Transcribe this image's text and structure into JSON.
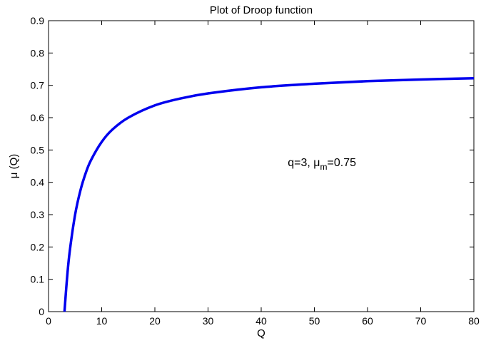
{
  "chart_data": {
    "type": "line",
    "title": "Plot of Droop function",
    "xlabel": "Q",
    "ylabel": "μ (Q)",
    "xlim": [
      0,
      80
    ],
    "ylim": [
      0,
      0.9
    ],
    "xticks": [
      "0",
      "10",
      "20",
      "30",
      "40",
      "50",
      "60",
      "70",
      "80"
    ],
    "yticks": [
      "0",
      "0.1",
      "0.2",
      "0.3",
      "0.4",
      "0.5",
      "0.6",
      "0.7",
      "0.8",
      "0.9"
    ],
    "grid": false,
    "series": [
      {
        "color": "#0000ee",
        "x": [
          3,
          3.5,
          4,
          5,
          6,
          7,
          8,
          10,
          12,
          15,
          20,
          25,
          30,
          40,
          50,
          60,
          70,
          80
        ],
        "y": [
          0,
          0.107,
          0.188,
          0.3,
          0.375,
          0.429,
          0.469,
          0.525,
          0.563,
          0.6,
          0.638,
          0.66,
          0.675,
          0.694,
          0.705,
          0.713,
          0.718,
          0.722
        ]
      }
    ],
    "annotation": {
      "prefix": "q=3, μ",
      "subscript": "m",
      "suffix": "=0.75",
      "x": 45,
      "y": 0.45
    }
  }
}
